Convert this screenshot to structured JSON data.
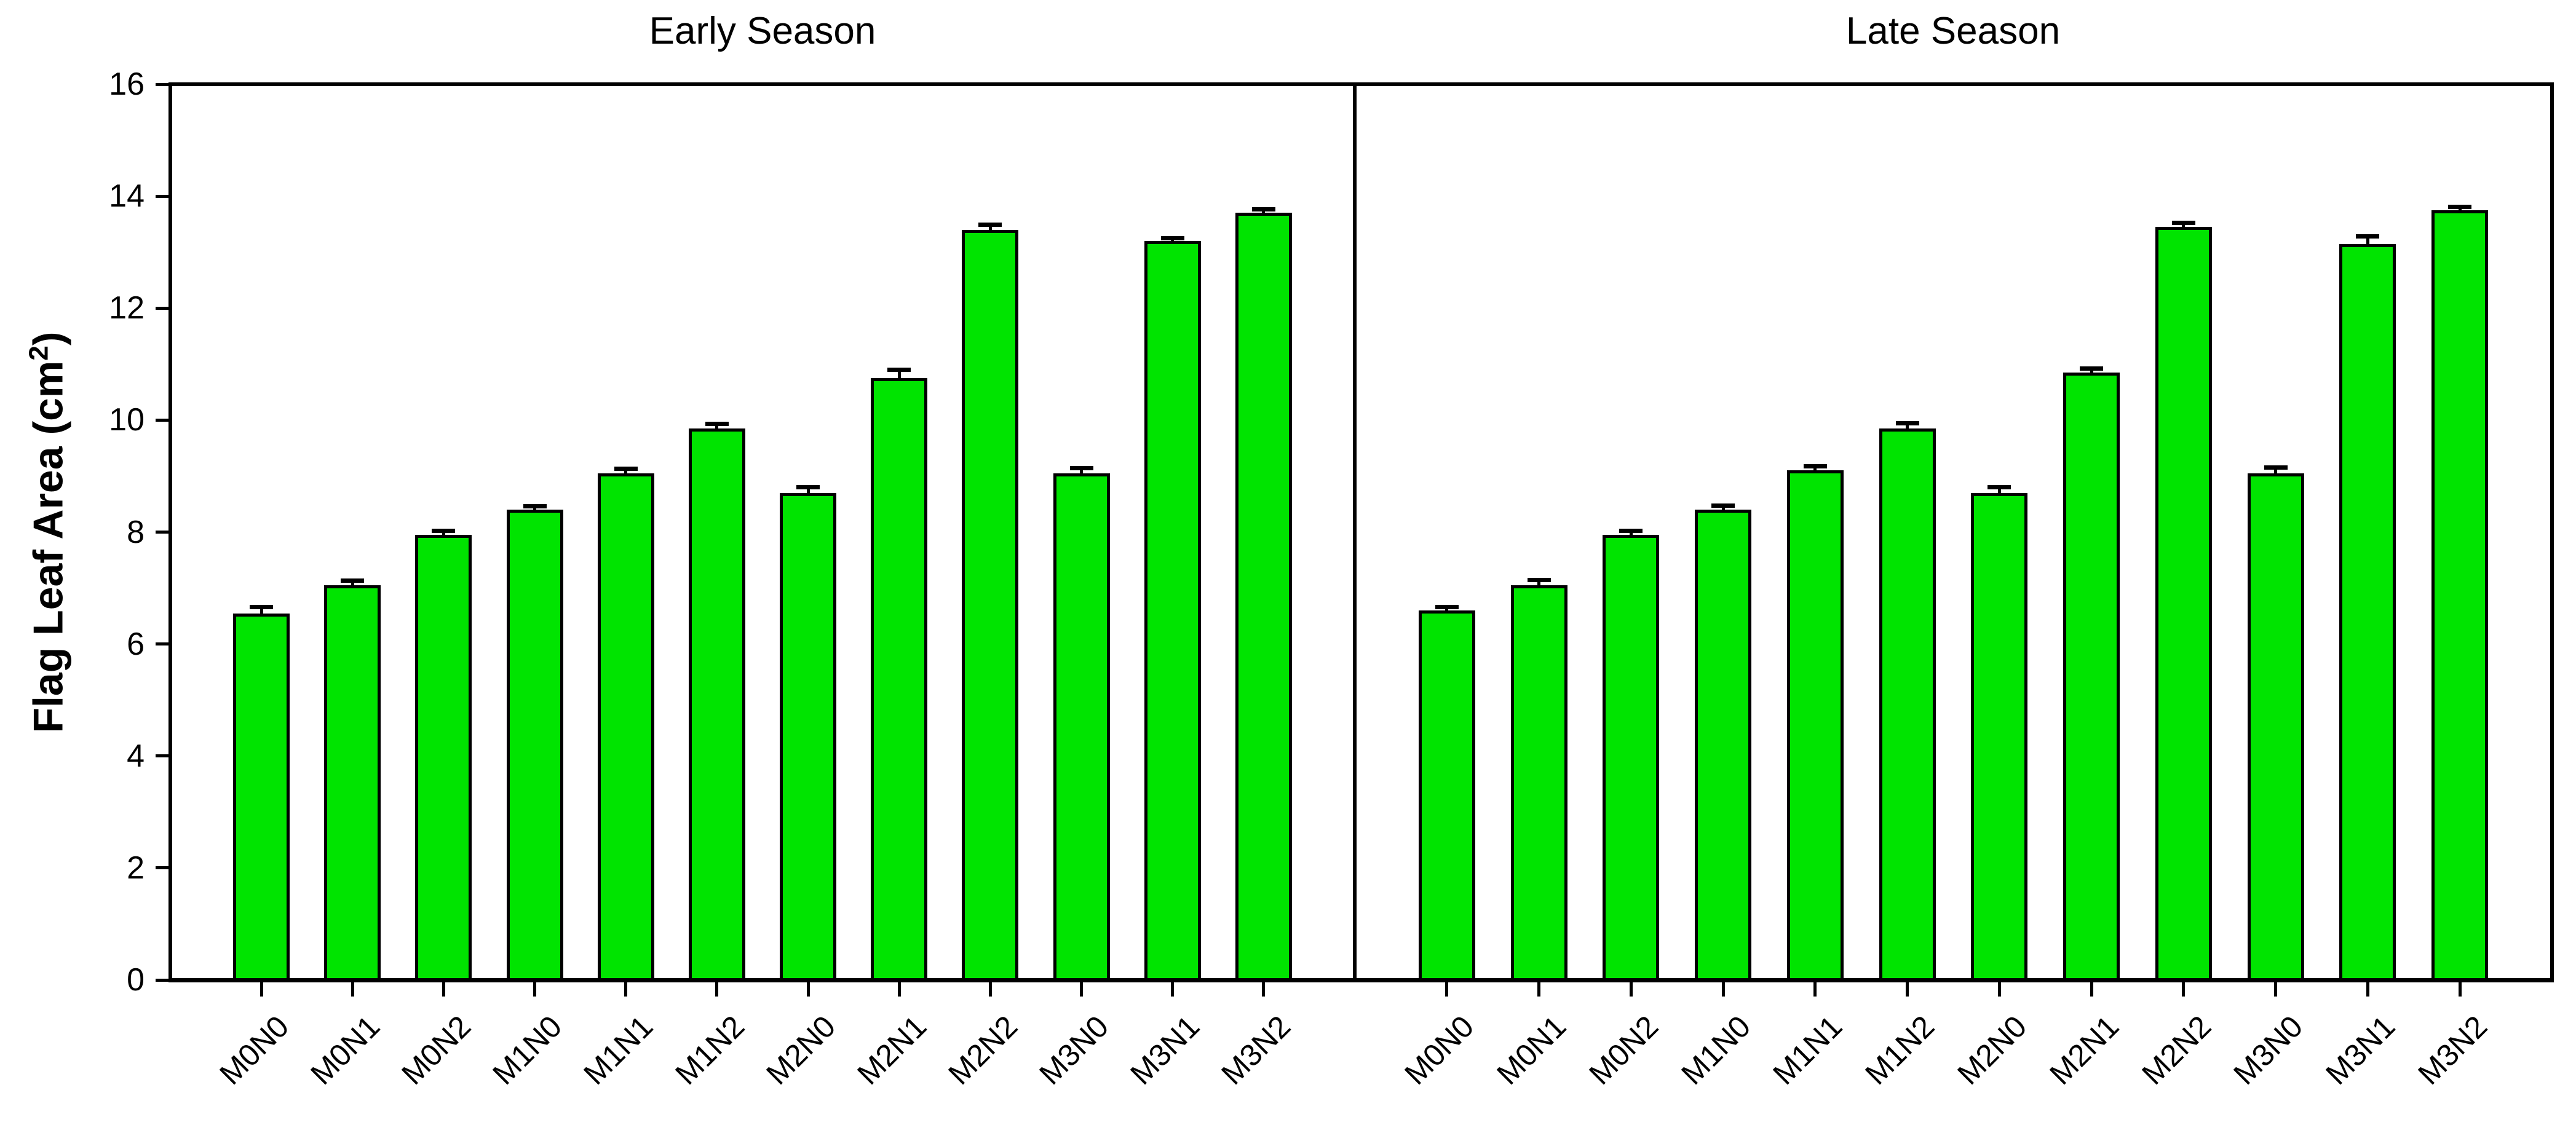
{
  "figure": {
    "background": "#ffffff",
    "titles": {
      "left": "Early Season",
      "right": "Late Season"
    }
  },
  "chart_data": {
    "type": "bar",
    "panels": [
      "Early Season",
      "Late Season"
    ],
    "ylabel": "Flag Leaf Area (cm²)",
    "ylabel_parts": {
      "prefix": "Flag Leaf Area (cm",
      "sup": "2",
      "suffix": ")"
    },
    "categories": [
      "M0N0",
      "M0N1",
      "M0N2",
      "M1N0",
      "M1N1",
      "M1N2",
      "M2N0",
      "M2N1",
      "M2N2",
      "M3N0",
      "M3N1",
      "M3N2"
    ],
    "series": [
      {
        "name": "Early Season",
        "values": [
          6.55,
          7.05,
          7.95,
          8.4,
          9.05,
          9.85,
          8.7,
          10.75,
          13.4,
          9.05,
          13.2,
          13.7
        ],
        "errors": [
          0.08,
          0.06,
          0.05,
          0.03,
          0.05,
          0.05,
          0.07,
          0.12,
          0.06,
          0.06,
          0.02,
          0.04
        ]
      },
      {
        "name": "Late Season",
        "values": [
          6.6,
          7.05,
          7.95,
          8.4,
          9.1,
          9.85,
          8.7,
          10.85,
          13.45,
          9.05,
          13.15,
          13.75
        ],
        "errors": [
          0.03,
          0.07,
          0.04,
          0.05,
          0.05,
          0.07,
          0.07,
          0.04,
          0.05,
          0.08,
          0.1,
          0.03
        ]
      }
    ],
    "ylim": [
      0,
      16
    ],
    "yticks": [
      0,
      2,
      4,
      6,
      8,
      10,
      12,
      14,
      16
    ],
    "grid": false,
    "legend": "none",
    "bar_color": "#00e400",
    "bar_border_color": "#000000",
    "error_bar_color": "#000000",
    "axis_color": "#000000",
    "text_color": "#000000"
  }
}
